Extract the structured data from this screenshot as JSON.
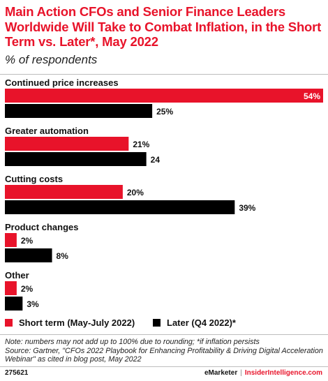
{
  "header": {
    "title": "Main Action CFOs and Senior Finance Leaders Worldwide Will Take to Combat Inflation, in the Short Term vs. Later*, May 2022",
    "subtitle": "% of respondents"
  },
  "colors": {
    "short_term": "#e8132a",
    "later": "#000000",
    "accent": "#e8132a"
  },
  "chart_data": {
    "type": "bar",
    "orientation": "horizontal",
    "title": "Main Action CFOs and Senior Finance Leaders Worldwide Will Take to Combat Inflation, in the Short Term vs. Later*, May 2022",
    "subtitle": "% of respondents",
    "categories": [
      "Continued price increases",
      "Greater automation",
      "Cutting costs",
      "Product changes",
      "Other"
    ],
    "series": [
      {
        "name": "Short term (May-July 2022)",
        "values": [
          54,
          21,
          20,
          2,
          2
        ],
        "labels": [
          "54%",
          "21%",
          "20%",
          "2%",
          "2%"
        ],
        "color": "#e8132a"
      },
      {
        "name": "Later (Q4 2022)*",
        "values": [
          25,
          24,
          39,
          8,
          3
        ],
        "labels": [
          "25%",
          "24",
          "39%",
          "8%",
          "3%"
        ],
        "color": "#000000"
      }
    ],
    "xlim": [
      0,
      54
    ],
    "grid": false,
    "legend_position": "bottom"
  },
  "legend": {
    "short_label": "Short term (May-July 2022)",
    "later_label": "Later (Q4 2022)*"
  },
  "note": "Note: numbers may not add up to 100% due to rounding; *if inflation persists",
  "source": "Source: Gartner, \"CFOs 2022 Playbook for Enhancing Profitability & Driving Digital Acceleration Webinar\" as cited in blog post, May 2022",
  "footer": {
    "id": "275621",
    "brand1": "eMarketer",
    "separator": "|",
    "brand2": "InsiderIntelligence.com"
  }
}
